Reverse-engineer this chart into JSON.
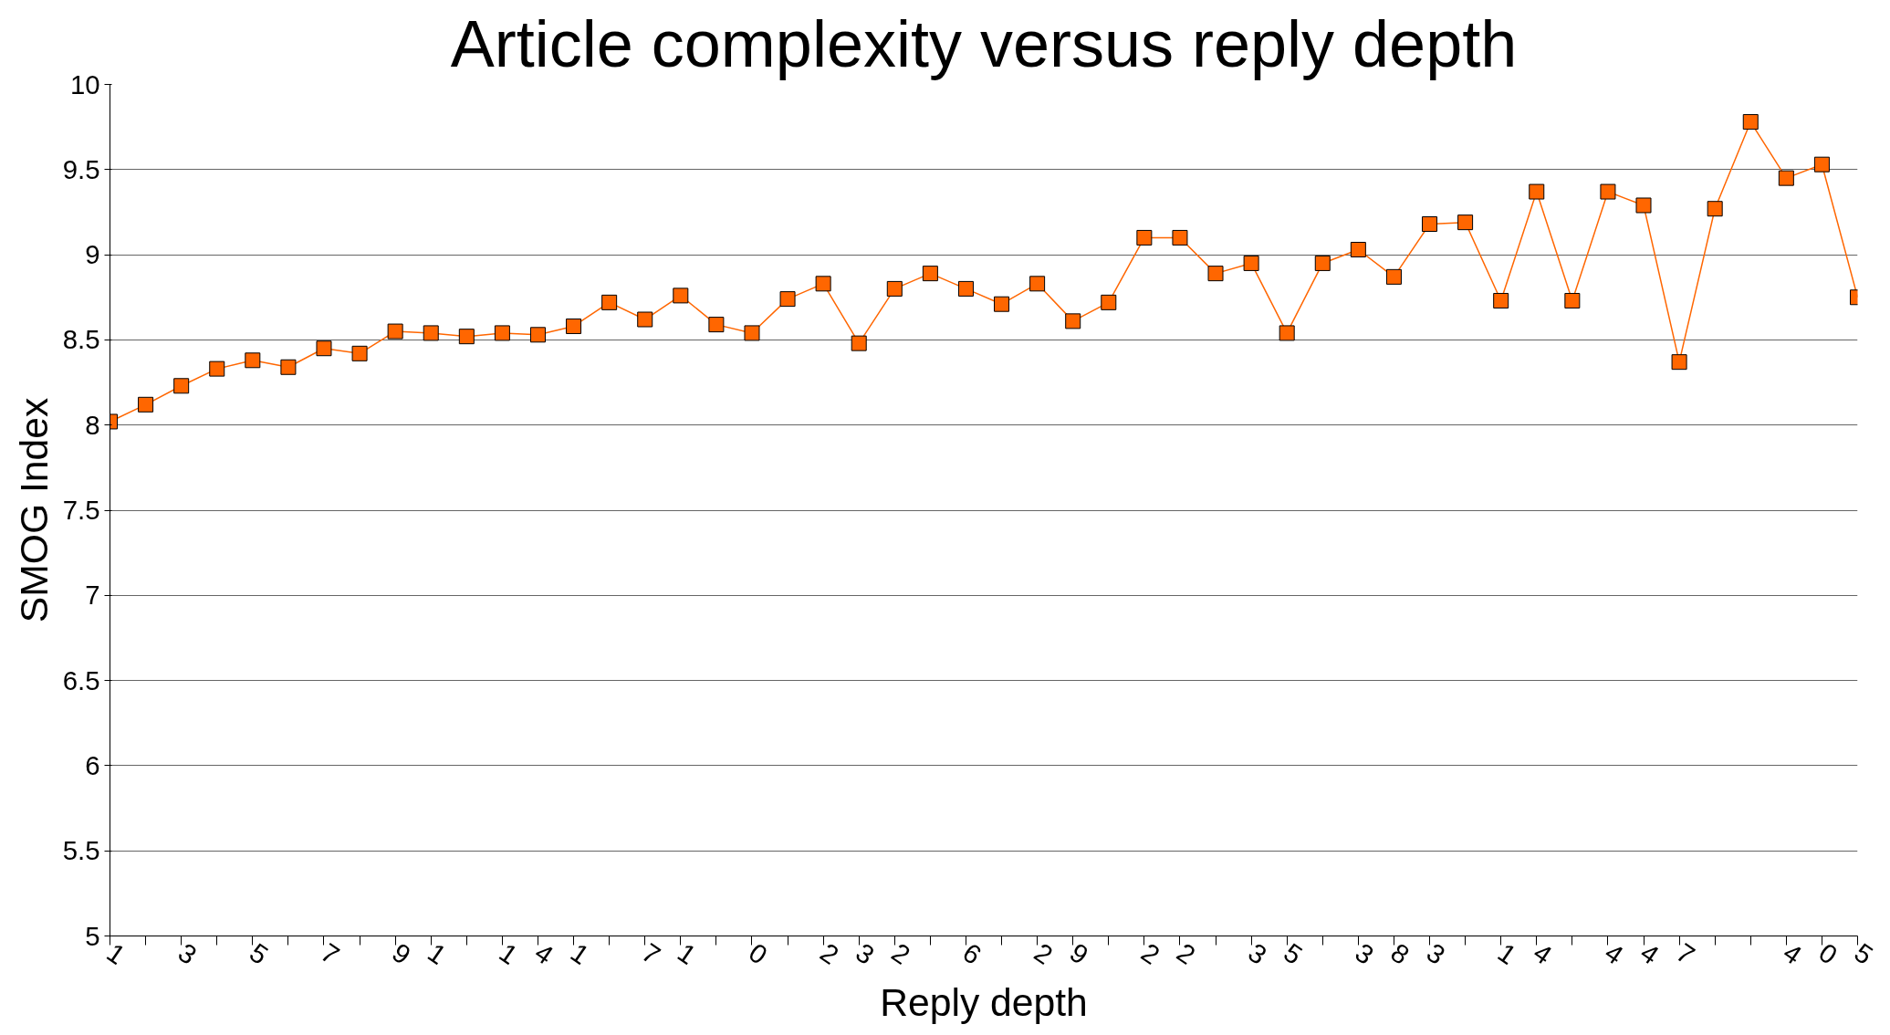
{
  "chart_data": {
    "type": "line",
    "title": "Article complexity versus reply depth",
    "xlabel": "Reply depth",
    "ylabel": "SMOG Index",
    "categories": [
      "1",
      null,
      "3",
      null,
      "5",
      null,
      "7",
      null,
      "9",
      "1",
      null,
      "1",
      "4",
      "1",
      null,
      "7",
      "1",
      null,
      "0",
      null,
      "2",
      "3",
      "2",
      null,
      "6",
      null,
      "2",
      "9",
      null,
      "2",
      "2",
      null,
      "3",
      "5",
      null,
      "3",
      "8",
      "3",
      null,
      "1",
      "4",
      null,
      "4",
      "4",
      "7",
      null,
      null,
      "4",
      "0",
      "5"
    ],
    "series": [
      {
        "color": "#ff6600",
        "values": [
          8.02,
          8.12,
          8.23,
          8.33,
          8.38,
          8.34,
          8.45,
          8.42,
          8.55,
          8.54,
          8.52,
          8.54,
          8.53,
          8.58,
          8.72,
          8.62,
          8.76,
          8.59,
          8.54,
          8.74,
          8.83,
          8.48,
          8.8,
          8.89,
          8.8,
          8.71,
          8.83,
          8.61,
          8.72,
          9.1,
          9.1,
          8.89,
          8.95,
          8.54,
          8.95,
          9.03,
          8.87,
          9.18,
          9.19,
          8.73,
          9.37,
          8.73,
          9.37,
          9.29,
          8.37,
          9.27,
          9.78,
          9.45,
          9.53,
          8.75
        ]
      }
    ],
    "ylim": [
      5,
      10
    ],
    "yticks": [
      5,
      5.5,
      6,
      6.5,
      7,
      7.5,
      8,
      8.5,
      9,
      9.5,
      10
    ],
    "grid": "y",
    "marker": "square",
    "line_style": "solid"
  }
}
